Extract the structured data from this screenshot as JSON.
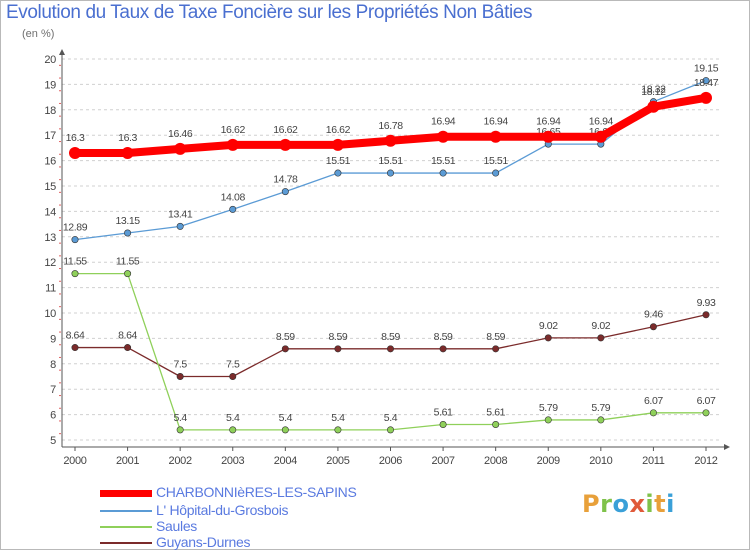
{
  "title": "Evolution du Taux de Taxe Foncière sur les Propriétés Non Bâties",
  "unit_label": "(en %)",
  "logo_text": "Proxiti",
  "colors": {
    "title": "#4a6fd0",
    "grid": "#d0d0d0",
    "axis": "#555555"
  },
  "chart_data": {
    "type": "line",
    "title": "Evolution du Taux de Taxe Foncière sur les Propriétés Non Bâties",
    "ylabel": "(en %)",
    "xlabel": "",
    "x": [
      "2000",
      "2001",
      "2002",
      "2003",
      "2004",
      "2005",
      "2006",
      "2007",
      "2008",
      "2009",
      "2010",
      "2011",
      "2012"
    ],
    "ylim": [
      5,
      20
    ],
    "yticks": [
      5,
      6,
      7,
      8,
      9,
      10,
      11,
      12,
      13,
      14,
      15,
      16,
      17,
      18,
      19,
      20
    ],
    "grid": "horizontal dashed",
    "legend": "bottom-left",
    "series": [
      {
        "name": "CHARBONNIèRES-LES-SAPINS",
        "color": "#ff0000",
        "values": [
          16.3,
          16.3,
          16.46,
          16.62,
          16.62,
          16.62,
          16.78,
          16.94,
          16.94,
          16.94,
          16.94,
          18.12,
          18.47
        ],
        "labels": [
          "16.3",
          "16.3",
          "16.46",
          "16.62",
          "16.62",
          "16.62",
          "16.78",
          "16.94",
          "16.94",
          "16.94",
          "16.94",
          "18.12",
          "18.47"
        ]
      },
      {
        "name": "L'Hôpital-du-Grosbois",
        "color": "#5b9bd5",
        "values": [
          12.89,
          13.15,
          13.41,
          14.08,
          14.78,
          15.51,
          15.51,
          15.51,
          15.51,
          16.65,
          16.65,
          18.32,
          19.15
        ],
        "labels": [
          "12.89",
          "13.15",
          "13.41",
          "14.08",
          "14.78",
          "15.51",
          "15.51",
          "15.51",
          "15.51",
          "16.65",
          "16.65",
          "18.32",
          "19.15"
        ]
      },
      {
        "name": "Saules",
        "color": "#8fd05a",
        "values": [
          11.55,
          11.55,
          5.4,
          5.4,
          5.4,
          5.4,
          5.4,
          5.61,
          5.61,
          5.79,
          5.79,
          6.07,
          6.07
        ],
        "labels": [
          "11.55",
          "11.55",
          "5.4",
          "5.4",
          "5.4",
          "5.4",
          "5.4",
          "5.61",
          "5.61",
          "5.79",
          "5.79",
          "6.07",
          "6.07"
        ]
      },
      {
        "name": "Guyans-Durnes",
        "color": "#7b2b2b",
        "values": [
          8.64,
          8.64,
          7.5,
          7.5,
          8.59,
          8.59,
          8.59,
          8.59,
          8.59,
          9.02,
          9.02,
          9.46,
          9.93
        ],
        "labels": [
          "8.64",
          "8.64",
          "7.5",
          "7.5",
          "8.59",
          "8.59",
          "8.59",
          "8.59",
          "8.59",
          "9.02",
          "9.02",
          "9.46",
          "9.93"
        ]
      }
    ]
  },
  "legend": [
    {
      "label": "CHARBONNIèRES-LES-SAPINS",
      "color": "#ff0000"
    },
    {
      "label": "L' Hôpital-du-Grosbois",
      "color": "#5b9bd5"
    },
    {
      "label": "Saules",
      "color": "#8fd05a"
    },
    {
      "label": "Guyans-Durnes",
      "color": "#7b2b2b"
    }
  ]
}
